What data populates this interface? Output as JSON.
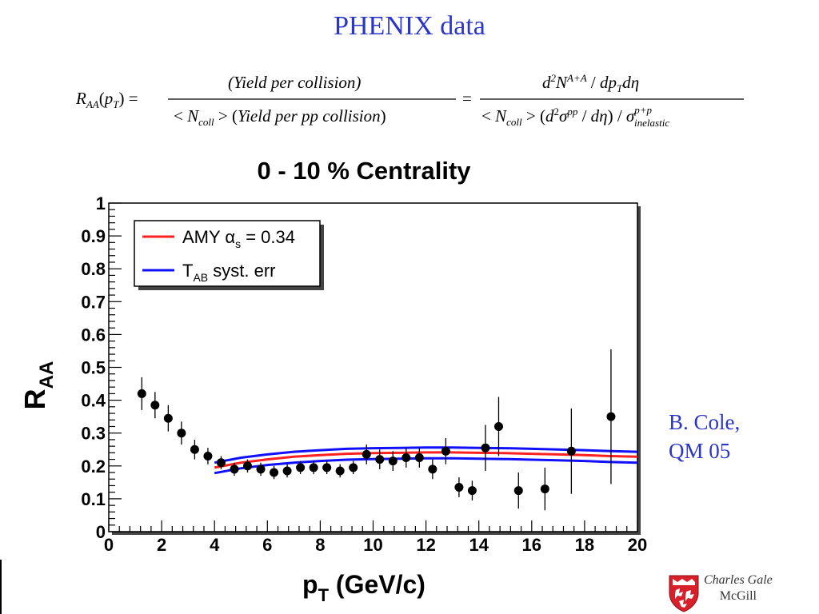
{
  "slide_title": "PHENIX data",
  "formula": {
    "lhs": "R_AA(p_T)",
    "middle_numerator": "(Yield per collision)",
    "middle_denominator": "< N_coll > (Yield per pp collision)",
    "right_numerator": "d²N^(A+A) / dp_T dη",
    "right_denominator": "< N_coll > (d²σ^pp / dη) / σ^(p+p)_inelastic"
  },
  "credit": {
    "line1": "B. Cole,",
    "line2": "QM 05"
  },
  "author": {
    "name": "Charles Gale",
    "institution": "McGill"
  },
  "chart_data": {
    "type": "scatter",
    "title": "0 - 10 % Centrality",
    "xlabel": "p_T (GeV/c)",
    "ylabel": "R_AA",
    "xlim": [
      0,
      20
    ],
    "ylim": [
      0,
      1
    ],
    "xticks": [
      "0",
      "2",
      "4",
      "6",
      "8",
      "10",
      "12",
      "14",
      "16",
      "18",
      "20"
    ],
    "yticks": [
      "0",
      "0.1",
      "0.2",
      "0.3",
      "0.4",
      "0.5",
      "0.6",
      "0.7",
      "0.8",
      "0.9",
      "1"
    ],
    "legend": {
      "position": "top-left",
      "entries": [
        {
          "label": "AMY α_s = 0.34",
          "color": "#ff2020"
        },
        {
          "label": "T_AB syst. err",
          "color": "#1010ff"
        }
      ]
    },
    "points": [
      {
        "x": 1.25,
        "y": 0.42,
        "err": 0.05
      },
      {
        "x": 1.75,
        "y": 0.385,
        "err": 0.04
      },
      {
        "x": 2.25,
        "y": 0.345,
        "err": 0.04
      },
      {
        "x": 2.75,
        "y": 0.3,
        "err": 0.035
      },
      {
        "x": 3.25,
        "y": 0.25,
        "err": 0.03
      },
      {
        "x": 3.75,
        "y": 0.23,
        "err": 0.025
      },
      {
        "x": 4.25,
        "y": 0.21,
        "err": 0.02
      },
      {
        "x": 4.75,
        "y": 0.19,
        "err": 0.02
      },
      {
        "x": 5.25,
        "y": 0.2,
        "err": 0.02
      },
      {
        "x": 5.75,
        "y": 0.19,
        "err": 0.02
      },
      {
        "x": 6.25,
        "y": 0.18,
        "err": 0.02
      },
      {
        "x": 6.75,
        "y": 0.185,
        "err": 0.02
      },
      {
        "x": 7.25,
        "y": 0.195,
        "err": 0.02
      },
      {
        "x": 7.75,
        "y": 0.195,
        "err": 0.02
      },
      {
        "x": 8.25,
        "y": 0.195,
        "err": 0.02
      },
      {
        "x": 8.75,
        "y": 0.185,
        "err": 0.02
      },
      {
        "x": 9.25,
        "y": 0.195,
        "err": 0.02
      },
      {
        "x": 9.75,
        "y": 0.235,
        "err": 0.03
      },
      {
        "x": 10.25,
        "y": 0.22,
        "err": 0.03
      },
      {
        "x": 10.75,
        "y": 0.215,
        "err": 0.03
      },
      {
        "x": 11.25,
        "y": 0.225,
        "err": 0.03
      },
      {
        "x": 11.75,
        "y": 0.225,
        "err": 0.03
      },
      {
        "x": 12.25,
        "y": 0.19,
        "err": 0.03
      },
      {
        "x": 12.75,
        "y": 0.245,
        "err": 0.04
      },
      {
        "x": 13.25,
        "y": 0.135,
        "err": 0.03
      },
      {
        "x": 13.75,
        "y": 0.125,
        "err": 0.03
      },
      {
        "x": 14.25,
        "y": 0.255,
        "err": 0.07
      },
      {
        "x": 14.75,
        "y": 0.32,
        "err": 0.09
      },
      {
        "x": 15.5,
        "y": 0.125,
        "err": 0.055
      },
      {
        "x": 16.5,
        "y": 0.13,
        "err": 0.065
      },
      {
        "x": 17.5,
        "y": 0.245,
        "err": 0.13
      },
      {
        "x": 19.0,
        "y": 0.35,
        "err": 0.205
      }
    ],
    "curves": [
      {
        "name": "AMY α_s = 0.34",
        "color": "#ff2020",
        "x": [
          4,
          5,
          6,
          7,
          8,
          9,
          10,
          11,
          12,
          13,
          14,
          15,
          16,
          17,
          18,
          19,
          20
        ],
        "y": [
          0.195,
          0.21,
          0.22,
          0.228,
          0.233,
          0.237,
          0.239,
          0.24,
          0.241,
          0.241,
          0.24,
          0.239,
          0.237,
          0.235,
          0.233,
          0.23,
          0.228
        ]
      },
      {
        "name": "T_AB syst. err",
        "color": "#1010ff",
        "x": [
          4,
          5,
          6,
          7,
          8,
          9,
          10,
          11,
          12,
          13,
          14,
          15,
          16,
          17,
          18,
          19,
          20
        ],
        "y": [
          0.21,
          0.225,
          0.235,
          0.243,
          0.248,
          0.252,
          0.254,
          0.255,
          0.256,
          0.256,
          0.255,
          0.254,
          0.252,
          0.25,
          0.248,
          0.245,
          0.243
        ]
      },
      {
        "name": "T_AB syst. err",
        "color": "#1010ff",
        "x": [
          4,
          5,
          6,
          7,
          8,
          9,
          10,
          11,
          12,
          13,
          14,
          15,
          16,
          17,
          18,
          19,
          20
        ],
        "y": [
          0.178,
          0.193,
          0.203,
          0.21,
          0.215,
          0.219,
          0.221,
          0.222,
          0.223,
          0.223,
          0.222,
          0.221,
          0.219,
          0.217,
          0.215,
          0.212,
          0.21
        ]
      }
    ]
  }
}
